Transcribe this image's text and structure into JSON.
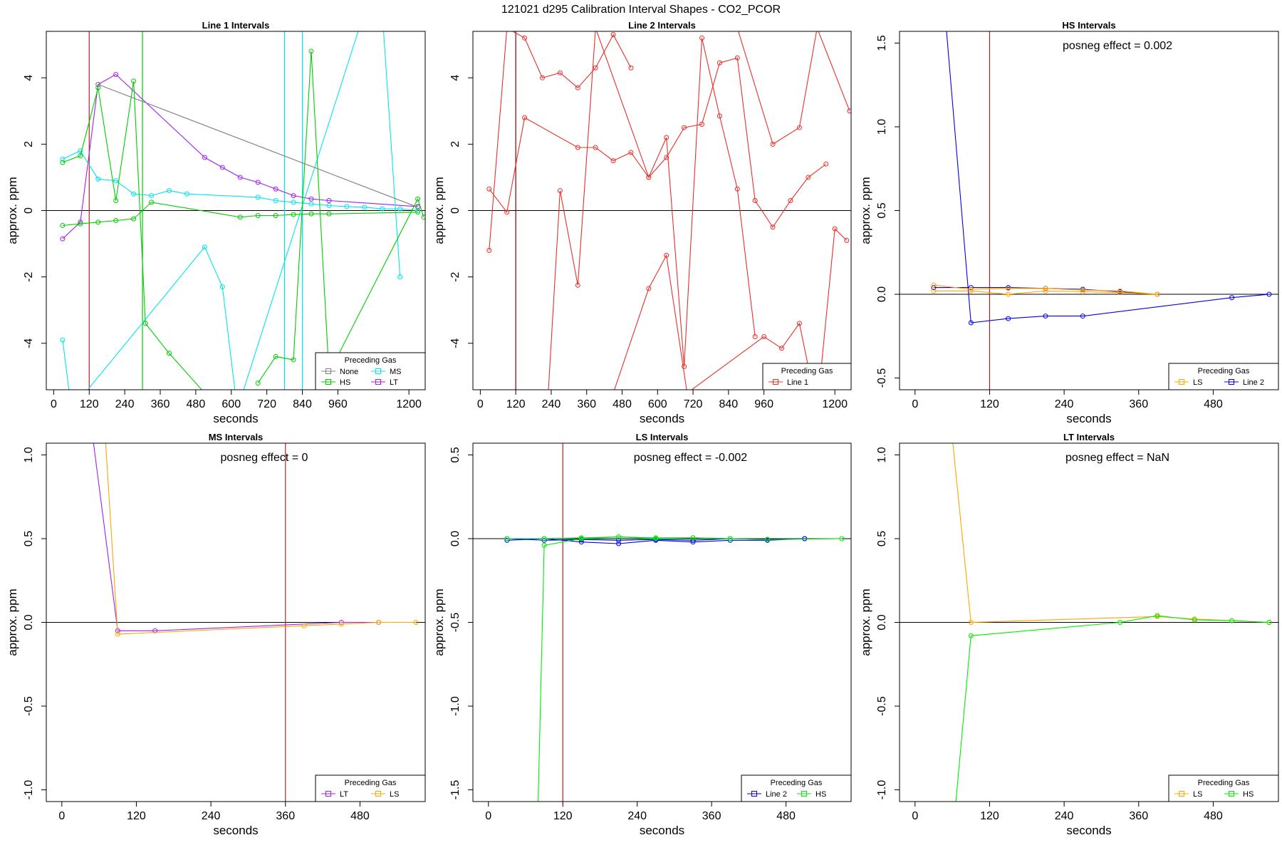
{
  "figure": {
    "title": "121021  d295   Calibration Interval Shapes - CO2_PCOR"
  },
  "chart_data": [
    {
      "type": "line",
      "title": "Line 1 Intervals",
      "xlabel": "seconds",
      "ylabel": "approx. ppm",
      "xlim": [
        -25,
        1255
      ],
      "ylim": [
        -5.4,
        5.4
      ],
      "xticks": [
        0,
        120,
        240,
        360,
        480,
        600,
        720,
        840,
        960,
        1200
      ],
      "xtick_labels": [
        "0",
        "120",
        "240",
        "360",
        "480",
        "600",
        "720",
        "840",
        "960",
        "1200"
      ],
      "yticks": [
        -4,
        -2,
        0,
        2,
        4
      ],
      "ytick_labels": [
        "-4",
        "-2",
        "0",
        "2",
        "4"
      ],
      "vlines": [
        {
          "x": 120,
          "color": "#b22222"
        },
        {
          "x": 300,
          "color": "#00cd00"
        },
        {
          "x": 780,
          "color": "#00e5ee"
        },
        {
          "x": 840,
          "color": "#00e5ee"
        }
      ],
      "legend": {
        "title": "Preceding Gas",
        "position": "bottom-right",
        "columns": 2,
        "entries": [
          {
            "label": "None",
            "color": "#808080"
          },
          {
            "label": "MS",
            "color": "#00e5ee"
          },
          {
            "label": "HS",
            "color": "#00cd00"
          },
          {
            "label": "LT",
            "color": "#a020f0"
          }
        ]
      },
      "series": [
        {
          "name": "LT",
          "color": "#a020f0",
          "x": [
            30,
            90,
            150,
            210,
            510,
            570,
            630,
            690,
            750,
            810,
            870,
            930,
            1230
          ],
          "y": [
            -0.85,
            -0.35,
            3.8,
            4.1,
            1.6,
            1.3,
            1.0,
            0.85,
            0.65,
            0.45,
            0.35,
            0.3,
            0.12
          ]
        },
        {
          "name": "MS",
          "color": "#00e5ee",
          "x": [
            30,
            90,
            150,
            210,
            270,
            330,
            390,
            450,
            690,
            750,
            810,
            870,
            930,
            990,
            1050,
            1110,
            1170,
            1230
          ],
          "y": [
            1.55,
            1.8,
            0.95,
            0.9,
            0.5,
            0.45,
            0.6,
            0.5,
            0.4,
            0.3,
            0.25,
            0.2,
            0.15,
            0.12,
            0.1,
            0.05,
            0.05,
            0.0
          ]
        },
        {
          "name": "MS",
          "color": "#00e5ee",
          "x": [
            30,
            60,
            510,
            570,
            620,
            1050,
            1110,
            1170
          ],
          "y": [
            -3.9,
            -6.0,
            -1.1,
            -2.3,
            -6.0,
            6.0,
            6.0,
            -2.0
          ]
        },
        {
          "name": "HS",
          "color": "#00cd00",
          "x": [
            30,
            90,
            150,
            210,
            270,
            310,
            390,
            510
          ],
          "y": [
            1.45,
            1.65,
            3.7,
            0.3,
            3.9,
            -3.4,
            -4.3,
            -5.5
          ]
        },
        {
          "name": "HS",
          "color": "#00cd00",
          "x": [
            690,
            750,
            810,
            870,
            930,
            1230,
            1250
          ],
          "y": [
            -5.2,
            -4.4,
            -4.5,
            4.8,
            -4.9,
            0.35,
            -0.2
          ]
        },
        {
          "name": "HS",
          "color": "#00cd00",
          "x": [
            30,
            90,
            150,
            210,
            270,
            330,
            630,
            690,
            750,
            810,
            870,
            930,
            1230
          ],
          "y": [
            -0.45,
            -0.4,
            -0.35,
            -0.3,
            -0.25,
            0.25,
            -0.2,
            -0.15,
            -0.15,
            -0.12,
            -0.1,
            -0.1,
            -0.05
          ]
        },
        {
          "name": "None",
          "color": "#808080",
          "x": [
            150,
            1230
          ],
          "y": [
            3.8,
            0.1
          ]
        }
      ]
    },
    {
      "type": "line",
      "title": "Line 2 Intervals",
      "xlabel": "seconds",
      "ylabel": "approx. ppm",
      "xlim": [
        -25,
        1255
      ],
      "ylim": [
        -5.4,
        5.4
      ],
      "xticks": [
        0,
        120,
        240,
        360,
        480,
        600,
        720,
        840,
        960,
        1200
      ],
      "xtick_labels": [
        "0",
        "120",
        "240",
        "360",
        "480",
        "600",
        "720",
        "840",
        "960",
        "1200"
      ],
      "yticks": [
        -4,
        -2,
        0,
        2,
        4
      ],
      "ytick_labels": [
        "-4",
        "-2",
        "0",
        "2",
        "4"
      ],
      "vlines": [
        {
          "x": 120,
          "color": "#800000"
        }
      ],
      "legend": {
        "title": "Preceding Gas",
        "position": "bottom-right",
        "columns": 1,
        "entries": [
          {
            "label": "Line 1",
            "color": "#e8302a"
          }
        ]
      },
      "series": [
        {
          "name": "Line 1",
          "color": "#e8302a",
          "x": [
            30,
            90,
            150,
            330,
            390,
            450,
            510,
            570,
            630,
            690,
            750,
            810,
            870,
            930,
            990,
            1050,
            1110,
            1170
          ],
          "y": [
            0.65,
            -0.05,
            2.8,
            1.9,
            1.9,
            1.5,
            1.75,
            1.0,
            1.6,
            2.5,
            2.6,
            4.45,
            4.6,
            0.3,
            -0.5,
            0.3,
            1.0,
            1.4
          ]
        },
        {
          "name": "Line 1",
          "color": "#e8302a",
          "x": [
            30,
            90,
            150,
            210,
            270,
            330,
            390,
            450,
            510
          ],
          "y": [
            -1.2,
            5.5,
            5.2,
            4.0,
            4.15,
            3.7,
            4.3,
            5.3,
            4.3
          ]
        },
        {
          "name": "Line 1",
          "color": "#e8302a",
          "x": [
            230,
            270,
            330,
            390,
            570,
            630,
            690,
            750,
            810,
            870,
            930
          ],
          "y": [
            -5.5,
            0.6,
            -2.25,
            5.5,
            1.0,
            2.2,
            -4.7,
            5.2,
            2.85,
            0.65,
            -3.8
          ]
        },
        {
          "name": "Line 1",
          "color": "#e8302a",
          "x": [
            450,
            570,
            630,
            700,
            960,
            1020,
            1080,
            1140,
            1200,
            1240
          ],
          "y": [
            -5.5,
            -2.35,
            -1.35,
            -5.5,
            -3.8,
            -4.15,
            -3.4,
            -6.0,
            -0.55,
            -0.9
          ]
        },
        {
          "name": "Line 1",
          "color": "#e8302a",
          "x": [
            870,
            990,
            1080,
            1140,
            1250
          ],
          "y": [
            5.5,
            2.0,
            2.5,
            5.5,
            3.0
          ]
        }
      ]
    },
    {
      "type": "line",
      "title": "HS Intervals",
      "xlabel": "seconds",
      "ylabel": "approx. ppm",
      "annotation": "posneg effect = 0.002",
      "xlim": [
        -25,
        585
      ],
      "ylim": [
        -0.57,
        1.57
      ],
      "xticks": [
        0,
        120,
        240,
        360,
        480
      ],
      "xtick_labels": [
        "0",
        "120",
        "240",
        "360",
        "480"
      ],
      "yticks": [
        -0.5,
        0.0,
        0.5,
        1.0,
        1.5
      ],
      "ytick_labels": [
        "-0.5",
        "0.0",
        "0.5",
        "1.0",
        "1.5"
      ],
      "vlines": [
        {
          "x": 120,
          "color": "#b22222"
        }
      ],
      "legend": {
        "title": "Preceding Gas",
        "position": "bottom-right",
        "columns": 2,
        "entries": [
          {
            "label": "LS",
            "color": "#ffa500"
          },
          {
            "label": "Line 2",
            "color": "#0000ee"
          }
        ]
      },
      "series": [
        {
          "name": "Line 2",
          "color": "#0000ee",
          "x": [
            50,
            90,
            150,
            210,
            270,
            510,
            570
          ],
          "y": [
            1.6,
            -0.17,
            -0.145,
            -0.13,
            -0.13,
            -0.02,
            0.0
          ]
        },
        {
          "name": "Line 2",
          "color": "#0000ee",
          "x": [
            30,
            90,
            150,
            210,
            270,
            330,
            390
          ],
          "y": [
            0.04,
            0.04,
            0.04,
            0.035,
            0.03,
            0.015,
            0.0
          ]
        },
        {
          "name": "LS",
          "color": "#ffa500",
          "x": [
            30,
            90,
            150,
            210,
            270,
            330,
            390
          ],
          "y": [
            0.055,
            0.03,
            0.035,
            0.035,
            0.025,
            0.02,
            0.0
          ]
        },
        {
          "name": "LS",
          "color": "#ffa500",
          "x": [
            30,
            90,
            150,
            210,
            270,
            330,
            390
          ],
          "y": [
            0.02,
            0.02,
            0.0,
            0.02,
            0.015,
            0.01,
            0.0
          ]
        }
      ]
    },
    {
      "type": "line",
      "title": "MS Intervals",
      "xlabel": "seconds",
      "ylabel": "approx. ppm",
      "annotation": "posneg effect = 0",
      "xlim": [
        -25,
        585
      ],
      "ylim": [
        -1.07,
        1.07
      ],
      "xticks": [
        0,
        120,
        240,
        360,
        480
      ],
      "xtick_labels": [
        "0",
        "120",
        "240",
        "360",
        "480"
      ],
      "yticks": [
        -1.0,
        -0.5,
        0.0,
        0.5,
        1.0
      ],
      "ytick_labels": [
        "-1.0",
        "-0.5",
        "0.0",
        "0.5",
        "1.0"
      ],
      "vlines": [
        {
          "x": 360,
          "color": "#b22222"
        }
      ],
      "legend": {
        "title": "Preceding Gas",
        "position": "bottom-right",
        "columns": 2,
        "entries": [
          {
            "label": "LT",
            "color": "#a020f0"
          },
          {
            "label": "LS",
            "color": "#ffa500"
          }
        ]
      },
      "series": [
        {
          "name": "LT",
          "color": "#a020f0",
          "x": [
            50,
            90,
            150,
            450,
            510
          ],
          "y": [
            1.1,
            -0.05,
            -0.05,
            0.0,
            0.0
          ]
        },
        {
          "name": "LS",
          "color": "#ffa500",
          "x": [
            70,
            90,
            390,
            450,
            510,
            570
          ],
          "y": [
            1.1,
            -0.07,
            -0.02,
            -0.01,
            0.0,
            0.0
          ]
        }
      ]
    },
    {
      "type": "line",
      "title": "LS Intervals",
      "xlabel": "seconds",
      "ylabel": "approx. ppm",
      "annotation": "posneg effect = -0.002",
      "xlim": [
        -25,
        585
      ],
      "ylim": [
        -1.57,
        0.57
      ],
      "xticks": [
        0,
        120,
        240,
        360,
        480
      ],
      "xtick_labels": [
        "0",
        "120",
        "240",
        "360",
        "480"
      ],
      "yticks": [
        -1.5,
        -1.0,
        -0.5,
        0.0,
        0.5
      ],
      "ytick_labels": [
        "-1.5",
        "-1.0",
        "-0.5",
        "0.0",
        "0.5"
      ],
      "vlines": [
        {
          "x": 120,
          "color": "#b22222"
        }
      ],
      "legend": {
        "title": "Preceding Gas",
        "position": "bottom-right",
        "columns": 2,
        "entries": [
          {
            "label": "Line 2",
            "color": "#0000ee"
          },
          {
            "label": "HS",
            "color": "#00ee00"
          }
        ]
      },
      "series": [
        {
          "name": "Line 2",
          "color": "#0000ee",
          "x": [
            30,
            90,
            150,
            210,
            270,
            330,
            390,
            450,
            510
          ],
          "y": [
            -0.01,
            0.0,
            -0.02,
            -0.03,
            -0.01,
            -0.02,
            -0.01,
            -0.01,
            0.0
          ]
        },
        {
          "name": "Line 2",
          "color": "#0000ee",
          "x": [
            30,
            90,
            150,
            210,
            270,
            330,
            390,
            450,
            510
          ],
          "y": [
            0.0,
            -0.01,
            -0.005,
            -0.01,
            -0.005,
            -0.01,
            0.0,
            -0.005,
            0.0
          ]
        },
        {
          "name": "HS",
          "color": "#00ee00",
          "x": [
            80,
            90,
            150,
            210,
            270,
            330,
            390,
            450,
            570
          ],
          "y": [
            -1.6,
            -0.04,
            0.0,
            0.01,
            0.0,
            0.005,
            0.0,
            -0.005,
            0.0
          ]
        },
        {
          "name": "HS",
          "color": "#00ee00",
          "x": [
            30,
            90,
            150,
            210,
            270,
            330,
            390
          ],
          "y": [
            0.0,
            0.0,
            0.005,
            0.01,
            0.005,
            0.005,
            0.0
          ]
        }
      ]
    },
    {
      "type": "line",
      "title": "LT Intervals",
      "xlabel": "seconds",
      "ylabel": "approx. ppm",
      "annotation": "posneg effect = NaN",
      "xlim": [
        -25,
        585
      ],
      "ylim": [
        -1.07,
        1.07
      ],
      "xticks": [
        0,
        120,
        240,
        360,
        480
      ],
      "xtick_labels": [
        "0",
        "120",
        "240",
        "360",
        "480"
      ],
      "yticks": [
        -1.0,
        -0.5,
        0.0,
        0.5,
        1.0
      ],
      "ytick_labels": [
        "-1.0",
        "-0.5",
        "0.0",
        "0.5",
        "1.0"
      ],
      "vlines": [],
      "legend": {
        "title": "Preceding Gas",
        "position": "bottom-right",
        "columns": 2,
        "entries": [
          {
            "label": "LS",
            "color": "#ffa500"
          },
          {
            "label": "HS",
            "color": "#00ee00"
          }
        ]
      },
      "series": [
        {
          "name": "LS",
          "color": "#ffa500",
          "x": [
            60,
            90,
            390,
            450,
            510,
            570
          ],
          "y": [
            1.1,
            0.0,
            0.035,
            0.02,
            0.01,
            0.0
          ]
        },
        {
          "name": "HS",
          "color": "#00ee00",
          "x": [
            65,
            90,
            330,
            390,
            450,
            510,
            570
          ],
          "y": [
            -1.1,
            -0.08,
            0.0,
            0.04,
            0.015,
            0.01,
            0.0
          ]
        }
      ]
    }
  ]
}
